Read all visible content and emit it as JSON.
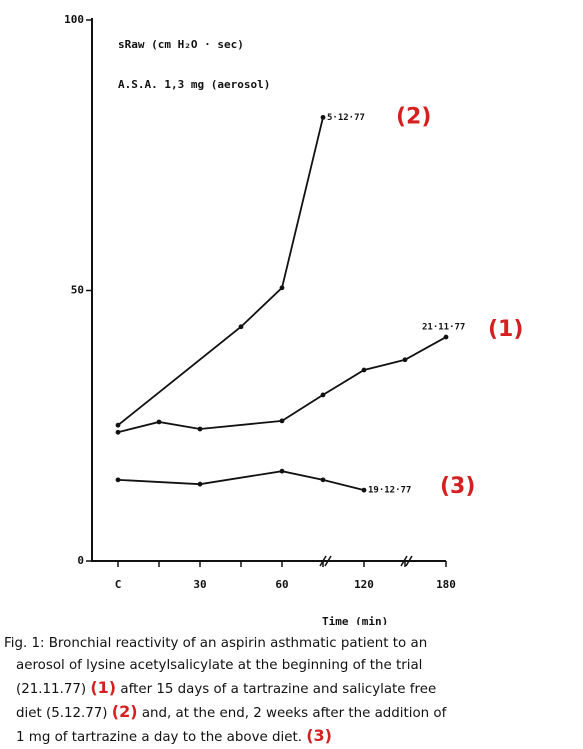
{
  "chart_data": {
    "type": "line",
    "annotations": [
      "sRaw (cm H₂O · sec)",
      "A.S.A. 1,3 mg (aerosol)"
    ],
    "xlabel": "Time (min)",
    "xlim": [
      0,
      180
    ],
    "xticks": [
      {
        "value": 0,
        "label": "C"
      },
      30,
      60,
      120,
      180
    ],
    "minor_xticks": [
      15,
      45,
      90,
      150
    ],
    "ylim": [
      0,
      100
    ],
    "yticks": [
      0,
      50,
      100
    ],
    "grid": false,
    "series": [
      {
        "name": "21·11·77",
        "tag": "(1)",
        "color": "#111111",
        "x": [
          0,
          15,
          30,
          60,
          90,
          120,
          150,
          180
        ],
        "values": [
          23.8,
          25.7,
          24.4,
          25.9,
          30.7,
          35.3,
          37.2,
          41.4
        ]
      },
      {
        "name": "5·12·77",
        "tag": "(2)",
        "color": "#111111",
        "x": [
          0,
          45,
          60,
          90
        ],
        "values": [
          25.1,
          43.3,
          50.5,
          82
        ]
      },
      {
        "name": "19·12·77",
        "tag": "(3)",
        "color": "#111111",
        "x": [
          0,
          30,
          60,
          90,
          120
        ],
        "values": [
          15,
          14.2,
          16.6,
          15,
          13.1
        ]
      }
    ]
  },
  "caption": [
    [
      "Fig. 1:  Bronchial reactivity of an aspirin asthmatic patient to an"
    ],
    [
      "aerosol of lysine acetylsalicylate at the beginning of the trial"
    ],
    [
      "(21.11.77)",
      {
        "text": "(1)",
        "color": "#d42020"
      },
      "after 15 days of a tartrazine and salicylate free"
    ],
    [
      "diet (5.12.77)",
      {
        "text": "(2)",
        "color": "#d42020"
      },
      "and, at the end, 2 weeks after the addition of"
    ],
    [
      "1 mg of tartrazine a day to the above diet.",
      {
        "text": "(3)",
        "color": "#d42020"
      }
    ]
  ]
}
